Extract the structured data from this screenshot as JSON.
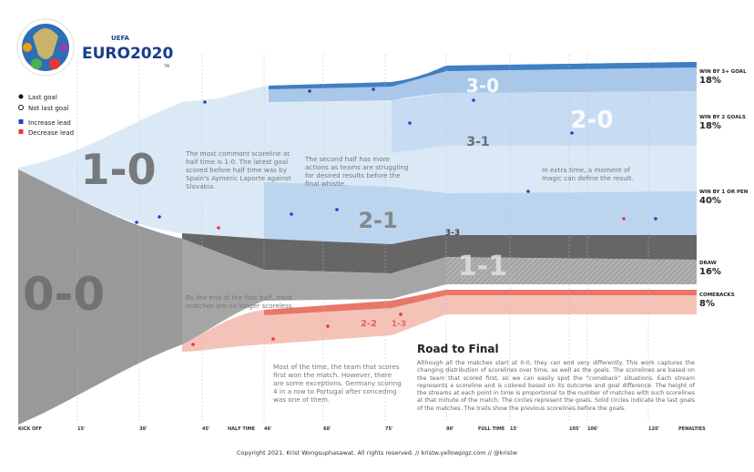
{
  "header": {
    "brand_top": "UEFA",
    "brand": "EURO2020",
    "tm": "TM"
  },
  "legend": [
    "Last goal",
    "Not last goal",
    "Increase lead",
    "Decrease lead"
  ],
  "scorelines": [
    "1-0",
    "0-0",
    "2-1",
    "1-1",
    "2-0",
    "3-0",
    "3-1",
    "3-3",
    "2-2",
    "1-3"
  ],
  "outcomes": [
    {
      "label": "WIN BY 3+ GOAL",
      "share": "18%"
    },
    {
      "label": "WIN BY 2 GOALS",
      "share": "18%"
    },
    {
      "label": "WIN BY 1 OR PEN",
      "share": "40%"
    },
    {
      "label": "DRAW",
      "share": "16%"
    },
    {
      "label": "COMEBACKS",
      "share": "8%"
    }
  ],
  "time_axis": [
    "KICK OFF",
    "15'",
    "30'",
    "45'",
    "HALF TIME",
    "46'",
    "60'",
    "75'",
    "90'",
    "FULL TIME",
    "15'",
    "105'",
    "106'",
    "120'",
    "PENALTIES"
  ],
  "annotations": [
    "The most commont scoreline at half time is 1-0. The latest goal scored before half time was by Spain's Aymeric Laporte against Slovakia.",
    "The second half has more actions as teams are struggling for desired results before the final whistle.",
    "In extra time, a moment of magic can define the result.",
    "By the end of the first half, most matches are no longer scoreless.",
    "Most of the time, the team that scores first won the match. However, there are some exceptions. Germany scoring 4 in a row to Portugal after conceding was one of them."
  ],
  "story": {
    "title": "Road to Final",
    "body": "Although all the matches start at 0-0, they can end very differently. This work captures the changing distribution of scorelines over time, as well as the goals. The scorelines are based on the team that scored first, so we can easily spot the \"comeback\" situations. Each stream represents a scoreline and is colored based on its outcome and goal difference. The height of the streams at each point in time is proportional to the number of matches with such scorelines at that minute of the match. The circles represent the goals. Solid circles indicate the last goals of the matches. The trails show the previous scorelines before the goals."
  },
  "footer": "Copyright 2021. Krist Wongsuphasawat. All rights reserved.  //  kristw.yellowpigz.com  //  @kristw"
}
